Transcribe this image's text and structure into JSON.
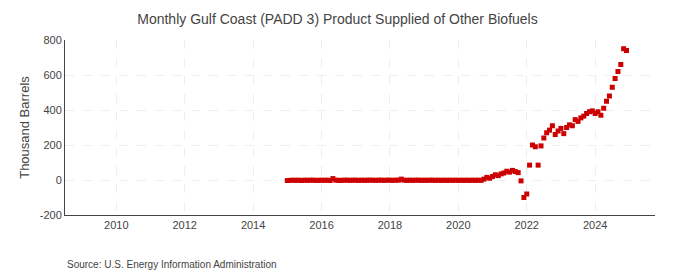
{
  "chart_data": {
    "type": "scatter",
    "title": "Monthly Gulf Coast (PADD 3) Product Supplied of Other Biofuels",
    "ylabel": "Thousand Barrels",
    "annotations": [
      "Source: U.S. Energy Information Administration"
    ],
    "color": "#cc0000",
    "marker": "square",
    "grid": true,
    "xlim": [
      2008.5,
      2025.75
    ],
    "xticks": [
      2010,
      2012,
      2014,
      2016,
      2018,
      2020,
      2022,
      2024
    ],
    "ylim": [
      -200,
      800
    ],
    "yticks": [
      -200,
      0,
      200,
      400,
      600,
      800
    ],
    "x": [
      2015.0,
      2015.083,
      2015.167,
      2015.25,
      2015.333,
      2015.417,
      2015.5,
      2015.583,
      2015.667,
      2015.75,
      2015.833,
      2015.917,
      2016.0,
      2016.083,
      2016.167,
      2016.25,
      2016.333,
      2016.417,
      2016.5,
      2016.583,
      2016.667,
      2016.75,
      2016.833,
      2016.917,
      2017.0,
      2017.083,
      2017.167,
      2017.25,
      2017.333,
      2017.417,
      2017.5,
      2017.583,
      2017.667,
      2017.75,
      2017.833,
      2017.917,
      2018.0,
      2018.083,
      2018.167,
      2018.25,
      2018.333,
      2018.417,
      2018.5,
      2018.583,
      2018.667,
      2018.75,
      2018.833,
      2018.917,
      2019.0,
      2019.083,
      2019.167,
      2019.25,
      2019.333,
      2019.417,
      2019.5,
      2019.583,
      2019.667,
      2019.75,
      2019.833,
      2019.917,
      2020.0,
      2020.083,
      2020.167,
      2020.25,
      2020.333,
      2020.417,
      2020.5,
      2020.583,
      2020.667,
      2020.75,
      2020.833,
      2020.917,
      2021.0,
      2021.083,
      2021.167,
      2021.25,
      2021.333,
      2021.417,
      2021.5,
      2021.583,
      2021.667,
      2021.75,
      2021.833,
      2021.917,
      2022.0,
      2022.083,
      2022.167,
      2022.25,
      2022.333,
      2022.417,
      2022.5,
      2022.583,
      2022.667,
      2022.75,
      2022.833,
      2022.917,
      2023.0,
      2023.083,
      2023.167,
      2023.25,
      2023.333,
      2023.417,
      2023.5,
      2023.583,
      2023.667,
      2023.75,
      2023.833,
      2023.917,
      2024.0,
      2024.083,
      2024.167,
      2024.25,
      2024.333,
      2024.417,
      2024.5,
      2024.583,
      2024.667,
      2024.75,
      2024.833,
      2024.917
    ],
    "values": [
      -3,
      -2,
      -1,
      -2,
      -1,
      -3,
      -1,
      -2,
      -1,
      -1,
      -2,
      -2,
      -1,
      -2,
      -1,
      -3,
      8,
      -1,
      -2,
      -2,
      -1,
      -1,
      -2,
      -1,
      -1,
      -2,
      -1,
      -2,
      -1,
      -1,
      -1,
      -2,
      -1,
      -1,
      -2,
      -1,
      -1,
      -2,
      -1,
      -1,
      5,
      -1,
      -2,
      -1,
      -2,
      -1,
      -1,
      -2,
      -1,
      -2,
      -1,
      -1,
      -2,
      -1,
      -2,
      -1,
      -2,
      -1,
      -2,
      -1,
      -2,
      -1,
      -2,
      -1,
      -2,
      -1,
      -2,
      -1,
      -2,
      5,
      15,
      10,
      20,
      30,
      25,
      35,
      40,
      50,
      45,
      55,
      48,
      42,
      -5,
      -100,
      -80,
      85,
      200,
      190,
      85,
      195,
      240,
      270,
      285,
      310,
      260,
      280,
      295,
      265,
      300,
      315,
      310,
      345,
      335,
      355,
      365,
      380,
      390,
      395,
      380,
      390,
      370,
      410,
      450,
      480,
      530,
      580,
      620,
      660,
      750,
      740
    ]
  }
}
